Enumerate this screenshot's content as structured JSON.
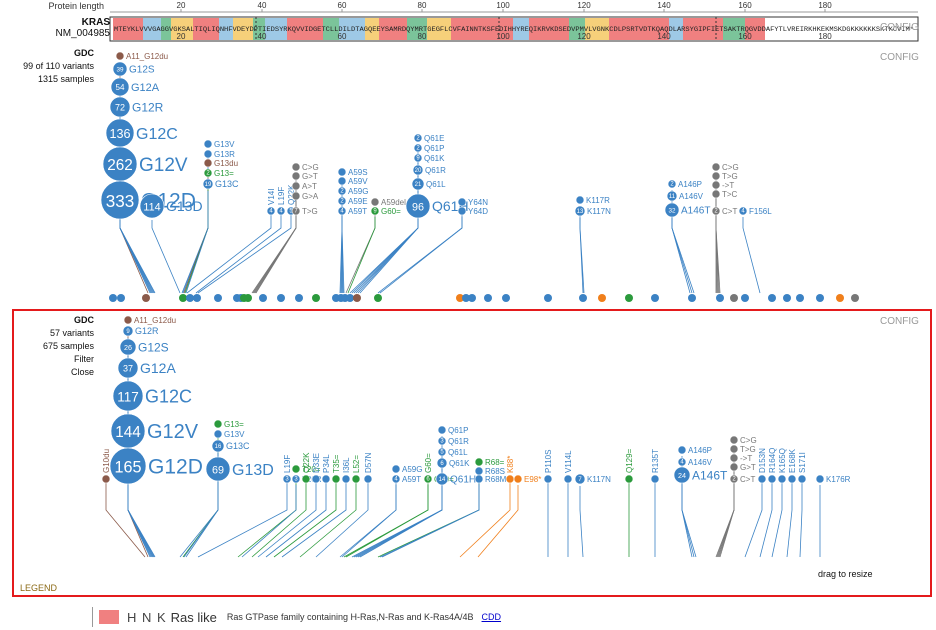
{
  "header": {
    "protein_length_label": "Protein length",
    "ruler_ticks": [
      "20",
      "40",
      "60",
      "80",
      "100",
      "120",
      "140",
      "160",
      "180"
    ]
  },
  "gene": {
    "symbol": "KRAS",
    "isoform": "NM_004985",
    "sequence": "MTEYKLVVVGAGGVGKSALTIQLIQNHFVDEYDPTIEDSYRKQVVIDGETCLLDILDTAGQEEYSAMRDQYMRTGEGFLCVFAINNTKSFEDIHHYREQIKRVKDSEDVPMVLVGNKCDLPSRTVDTKQAQDLARSYGIPFIETSAKTRQGVDDAFYTLVREIRKHKEKMSKDGKKKKKKSKTKCVIM*",
    "track_ticks": [
      "20",
      "40",
      "60",
      "80",
      "100",
      "120",
      "140",
      "160",
      "180"
    ]
  },
  "config_label": "CONFIG",
  "top_panel": {
    "source": "GDC",
    "variants": "99 of 110 variants",
    "samples": "1315 samples"
  },
  "bottom_panel": {
    "source": "GDC",
    "variants": "57 variants",
    "samples": "675 samples",
    "filter": "Filter",
    "close": "Close",
    "legend": "LEGEND",
    "resize": "drag to resize"
  },
  "legend_entry": {
    "letters": "H N K",
    "name": "Ras like",
    "description": "Ras GTPase family containing H-Ras,N-Ras and K-Ras4A/4B",
    "link": "CDD"
  },
  "colors": {
    "missense": "#3b82c4",
    "inframe": "#2b9a3c",
    "truncating": "#f07f1b",
    "splice": "#8b5a4a",
    "noncoding": "#777777",
    "lines": "#4a90d9",
    "frame": "#e41a1c"
  },
  "top_mutations": [
    {
      "count": "",
      "label": "A11_G12du"
    },
    {
      "count": "39",
      "label": "G12S"
    },
    {
      "count": "54",
      "label": "G12A"
    },
    {
      "count": "72",
      "label": "G12R"
    },
    {
      "count": "136",
      "label": "G12C"
    },
    {
      "count": "262",
      "label": "G12V"
    },
    {
      "count": "333",
      "label": "G12D"
    },
    {
      "count": "114",
      "label": "G13D"
    },
    {
      "count": "",
      "label": "G13V"
    },
    {
      "count": "",
      "label": "G13R"
    },
    {
      "count": "",
      "label": "G13du"
    },
    {
      "count": "2",
      "label": "G13="
    },
    {
      "count": "19",
      "label": "G13C"
    },
    {
      "count": "4",
      "label": "V14I"
    },
    {
      "count": "4",
      "label": "L19F"
    },
    {
      "count": "5",
      "label": "Q22K"
    },
    {
      "count": "",
      "label": "C>G"
    },
    {
      "count": "",
      "label": "G>T"
    },
    {
      "count": "",
      "label": "A>T"
    },
    {
      "count": "",
      "label": "G>A"
    },
    {
      "count": "7",
      "label": "T>G"
    },
    {
      "count": "",
      "label": "A59S"
    },
    {
      "count": "",
      "label": "A59V"
    },
    {
      "count": "2",
      "label": "A59G"
    },
    {
      "count": "2",
      "label": "A59E"
    },
    {
      "count": "4",
      "label": "A59T"
    },
    {
      "count": "",
      "label": "A59del"
    },
    {
      "count": "9",
      "label": "G60="
    },
    {
      "count": "2",
      "label": "Q61E"
    },
    {
      "count": "2",
      "label": "Q61P"
    },
    {
      "count": "9",
      "label": "Q61K"
    },
    {
      "count": "20",
      "label": "Q61R"
    },
    {
      "count": "21",
      "label": "Q61L"
    },
    {
      "count": "96",
      "label": "Q61H"
    },
    {
      "count": "",
      "label": "Y64N"
    },
    {
      "count": "",
      "label": "Y64D"
    },
    {
      "count": "",
      "label": "K117R"
    },
    {
      "count": "13",
      "label": "K117N"
    },
    {
      "count": "2",
      "label": "A146P"
    },
    {
      "count": "11",
      "label": "A146V"
    },
    {
      "count": "32",
      "label": "A146T"
    },
    {
      "count": "",
      "label": "C>G"
    },
    {
      "count": "",
      "label": "T>G"
    },
    {
      "count": "",
      "label": "->T"
    },
    {
      "count": "",
      "label": "T>C"
    },
    {
      "count": "2",
      "label": "C>T"
    },
    {
      "count": "4",
      "label": "F156L"
    }
  ],
  "bottom_mutations": [
    {
      "count": "",
      "label": "A11_G12du"
    },
    {
      "count": "9",
      "label": "G12R"
    },
    {
      "count": "26",
      "label": "G12S"
    },
    {
      "count": "37",
      "label": "G12A"
    },
    {
      "count": "117",
      "label": "G12C"
    },
    {
      "count": "144",
      "label": "G12V"
    },
    {
      "count": "165",
      "label": "G12D"
    },
    {
      "count": "69",
      "label": "G13D"
    },
    {
      "count": "",
      "label": "G13="
    },
    {
      "count": "",
      "label": "G13V"
    },
    {
      "count": "16",
      "label": "G13C"
    },
    {
      "count": "",
      "label": "G10du"
    },
    {
      "count": "3",
      "label": "L19F"
    },
    {
      "count": "",
      "label": "T20="
    },
    {
      "count": "3",
      "label": "T20R"
    },
    {
      "count": "",
      "label": "Q22K"
    },
    {
      "count": "",
      "label": "D33E"
    },
    {
      "count": "",
      "label": "P34L"
    },
    {
      "count": "",
      "label": "T35="
    },
    {
      "count": "",
      "label": "I36L"
    },
    {
      "count": "",
      "label": "L52="
    },
    {
      "count": "",
      "label": "D57N"
    },
    {
      "count": "",
      "label": "A59G"
    },
    {
      "count": "4",
      "label": "A59T"
    },
    {
      "count": "",
      "label": "G60="
    },
    {
      "count": "6",
      "label": "G60="
    },
    {
      "count": "",
      "label": "Q61P"
    },
    {
      "count": "3",
      "label": "Q61R"
    },
    {
      "count": "5",
      "label": "Q61L"
    },
    {
      "count": "6",
      "label": "Q61K"
    },
    {
      "count": "14",
      "label": "Q61H"
    },
    {
      "count": "",
      "label": "R68="
    },
    {
      "count": "",
      "label": "R68S"
    },
    {
      "count": "",
      "label": "R68M"
    },
    {
      "count": "",
      "label": "K88*"
    },
    {
      "count": "",
      "label": "E98*"
    },
    {
      "count": "",
      "label": "P110S"
    },
    {
      "count": "",
      "label": "V114L"
    },
    {
      "count": "7",
      "label": "K117N"
    },
    {
      "count": "",
      "label": "Q129="
    },
    {
      "count": "",
      "label": "R135T"
    },
    {
      "count": "",
      "label": "A146P"
    },
    {
      "count": "4",
      "label": "A146V"
    },
    {
      "count": "24",
      "label": "A146T"
    },
    {
      "count": "",
      "label": "C>G"
    },
    {
      "count": "",
      "label": "T>G"
    },
    {
      "count": "",
      "label": "->T"
    },
    {
      "count": "",
      "label": "G>T"
    },
    {
      "count": "2",
      "label": "C>T"
    },
    {
      "count": "",
      "label": "D153N"
    },
    {
      "count": "",
      "label": "R164Q"
    },
    {
      "count": "",
      "label": "K165Q"
    },
    {
      "count": "",
      "label": "E168K"
    },
    {
      "count": "",
      "label": "S171I"
    },
    {
      "count": "",
      "label": "K176R"
    }
  ]
}
